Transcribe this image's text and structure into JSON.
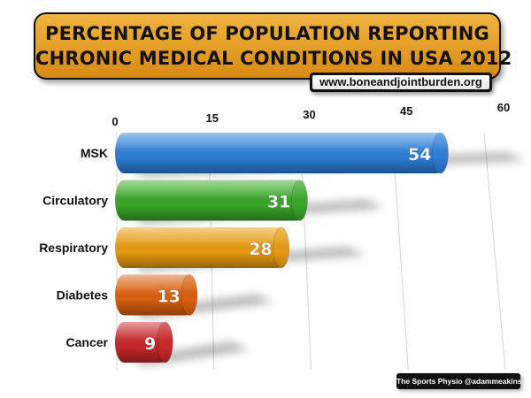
{
  "header": {
    "title_line1": "PERCENTAGE OF POPULATION REPORTING",
    "title_line2": "CHRONIC MEDICAL CONDITIONS IN USA 2012",
    "source": "www.boneandjointburden.org"
  },
  "footer": {
    "credit": "The Sports Physio @adammeakins"
  },
  "chart_data": {
    "type": "bar",
    "orientation": "horizontal",
    "title": "PERCENTAGE OF POPULATION REPORTING CHRONIC MEDICAL CONDITIONS IN USA 2012",
    "categories": [
      "MSK",
      "Circulatory",
      "Respiratory",
      "Diabetes",
      "Cancer"
    ],
    "values": [
      54,
      31,
      28,
      13,
      9
    ],
    "colors": [
      "#2d7fd6",
      "#3aa62a",
      "#e59a10",
      "#d9600e",
      "#c5282a"
    ],
    "xlim": [
      0,
      60
    ],
    "ticks": [
      0,
      15,
      30,
      45,
      60
    ],
    "grid": true,
    "xlabel": "",
    "ylabel": ""
  }
}
